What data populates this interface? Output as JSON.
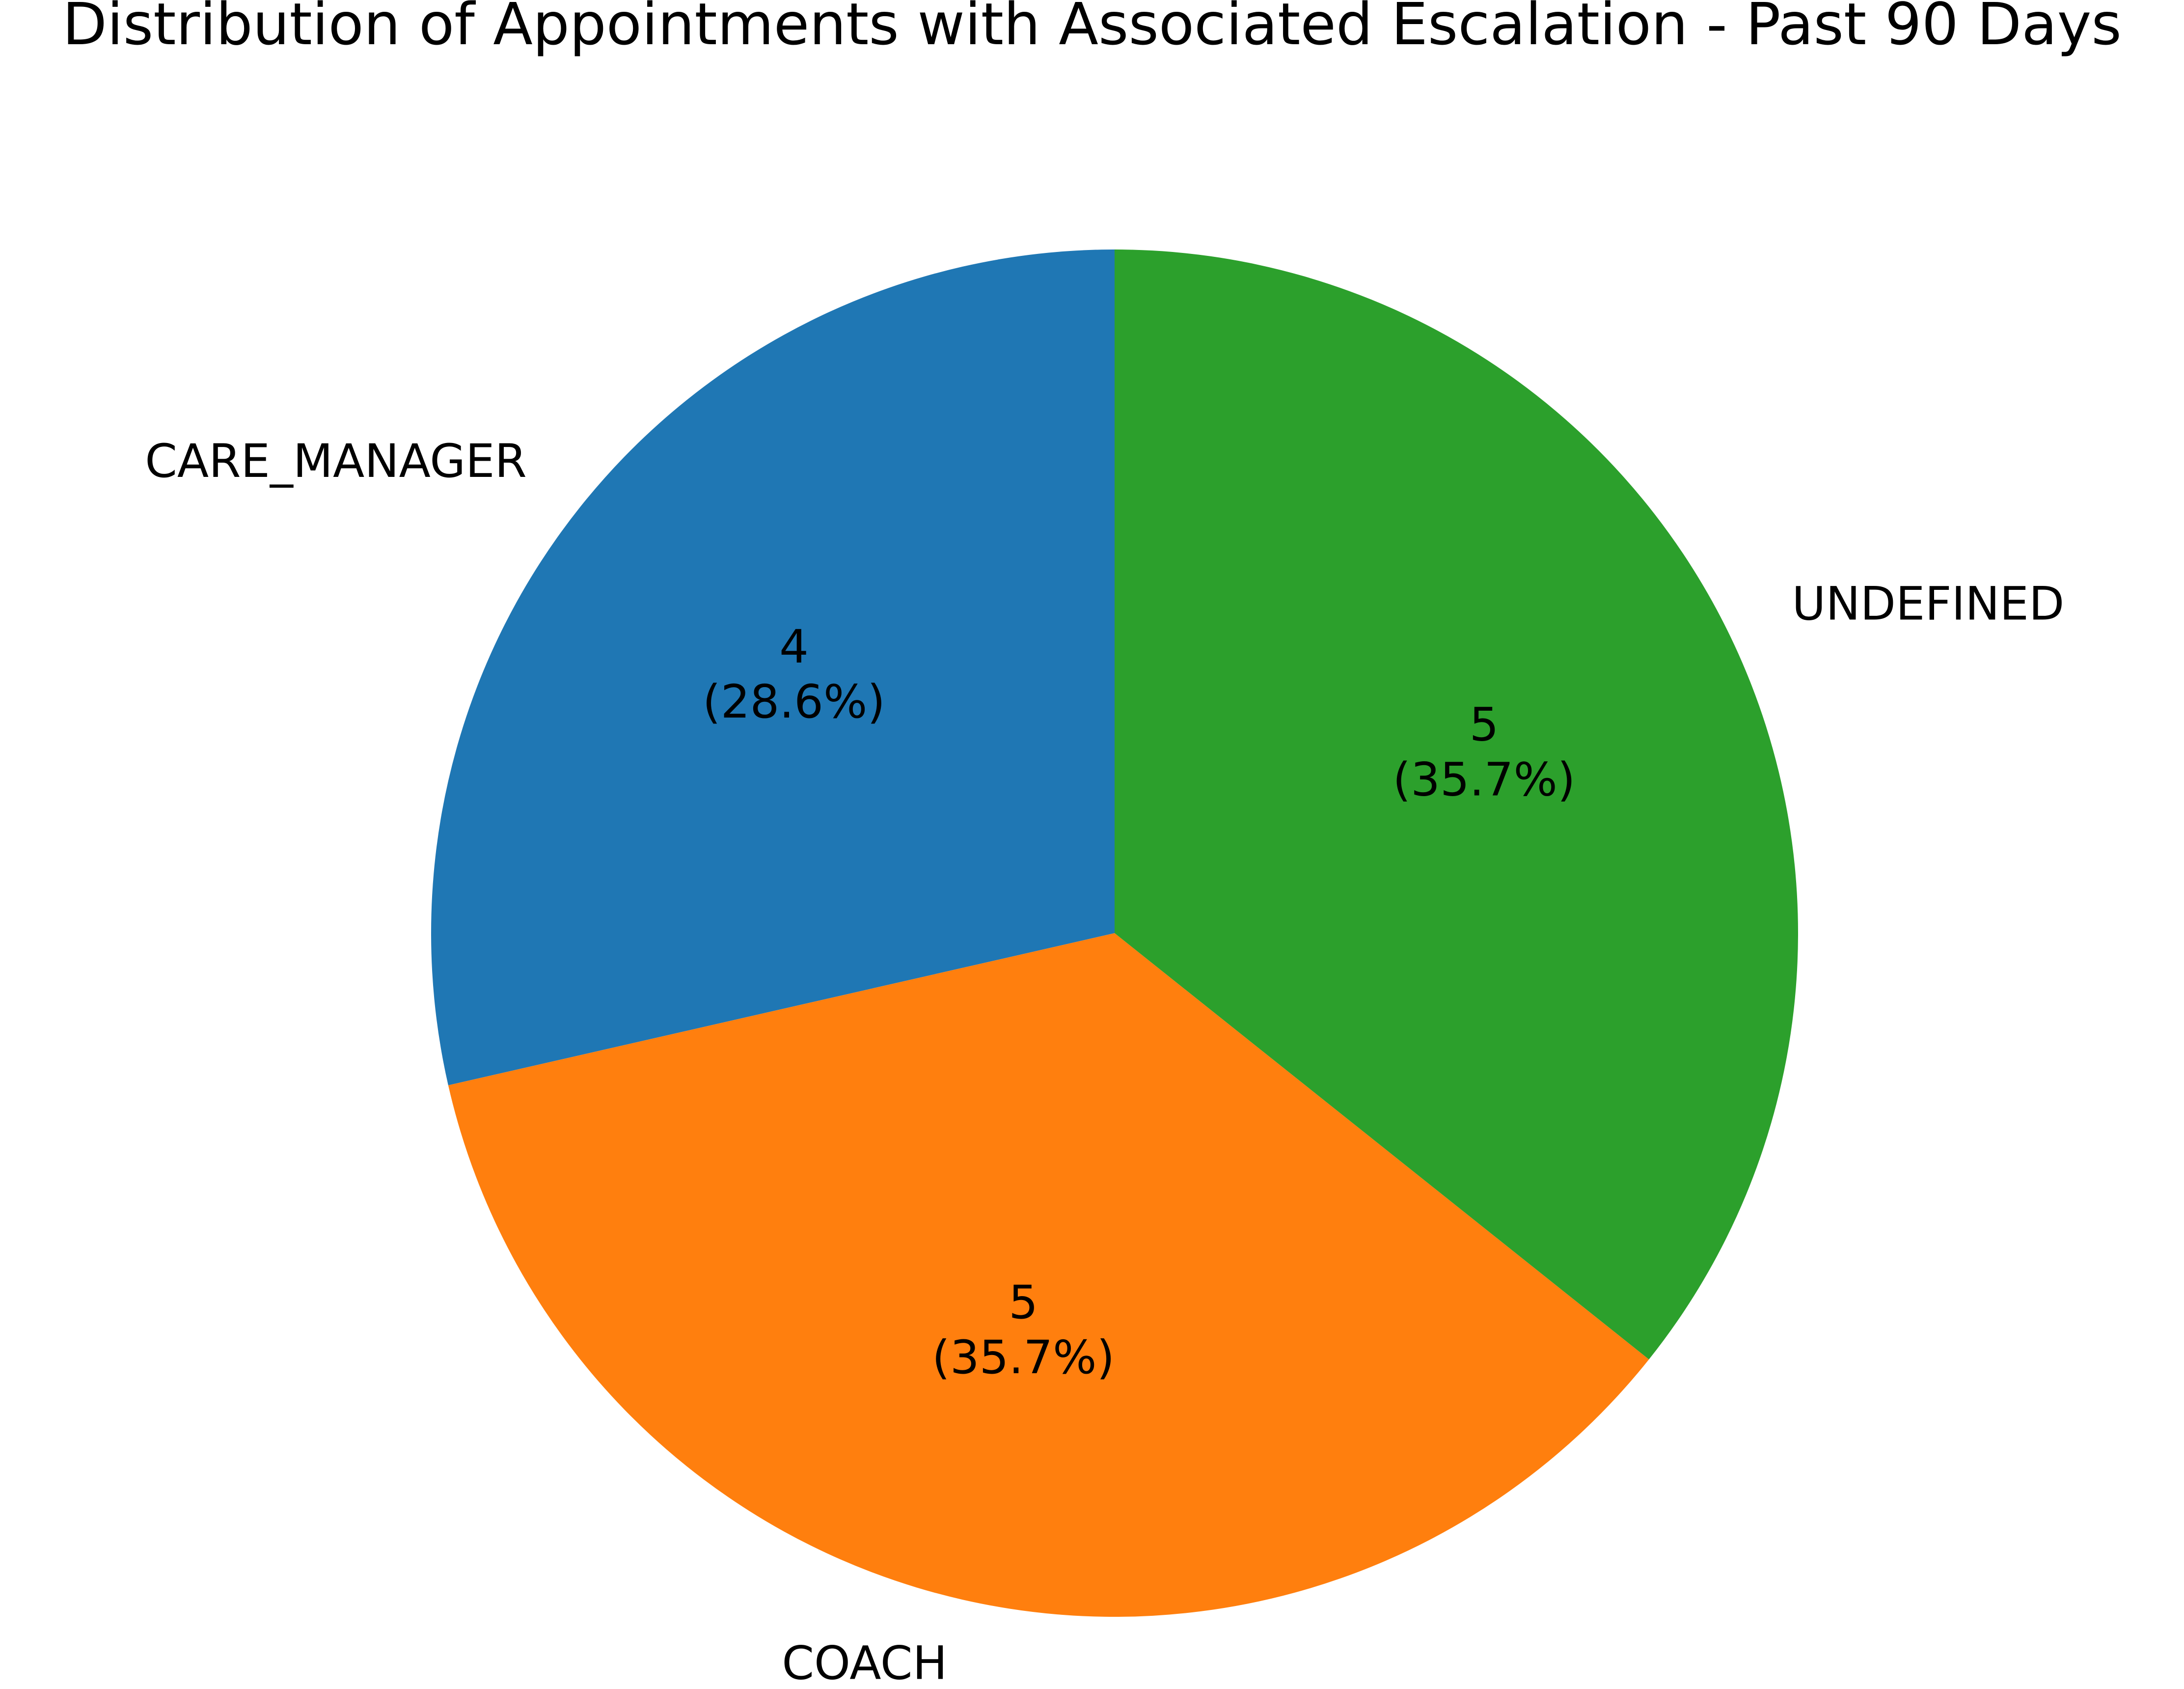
{
  "chart_data": {
    "type": "pie",
    "title": "Distribution of Appointments with Associated Escalation - Past 90 Days",
    "start_angle_deg": 90,
    "direction": "counterclockwise",
    "slices": [
      {
        "label": "CARE_MANAGER",
        "value": 4,
        "value_text": "4",
        "percent_text": "(28.6%)",
        "color": "#1f77b4"
      },
      {
        "label": "COACH",
        "value": 5,
        "value_text": "5",
        "percent_text": "(35.7%)",
        "color": "#ff7f0e"
      },
      {
        "label": "UNDEFINED",
        "value": 5,
        "value_text": "5",
        "percent_text": "(35.7%)",
        "color": "#2ca02c"
      }
    ]
  }
}
